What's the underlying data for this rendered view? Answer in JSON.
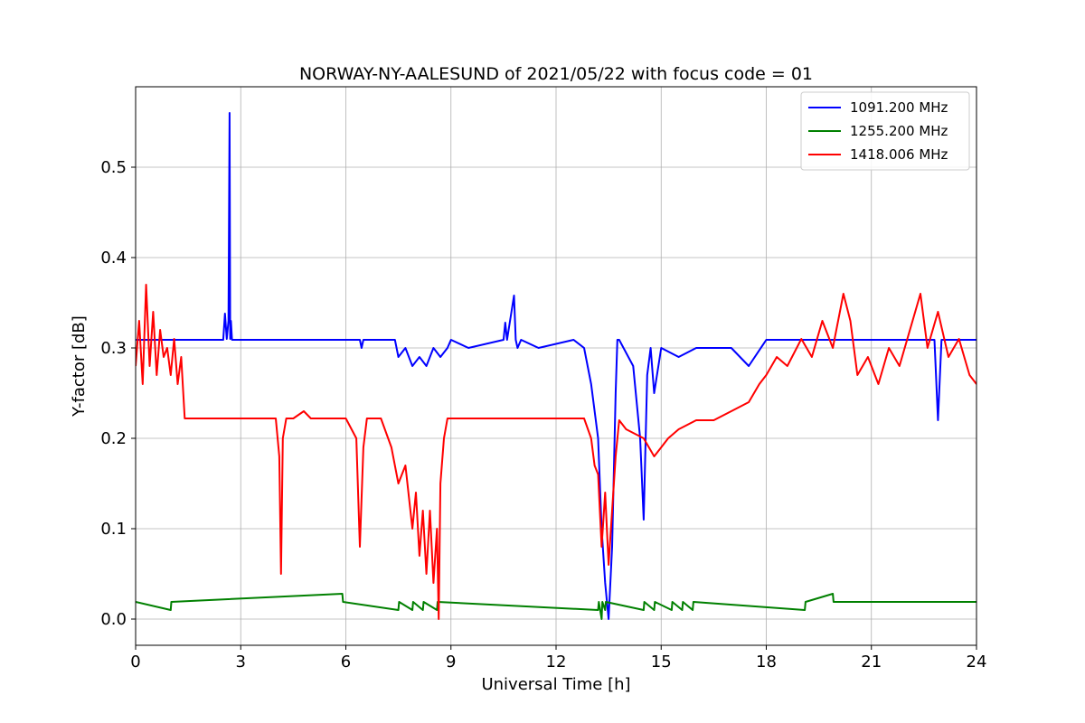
{
  "chart_data": {
    "type": "line",
    "title": "NORWAY-NY-AALESUND of 2021/05/22 with focus code = 01",
    "xlabel": "Universal Time [h]",
    "ylabel": "Y-factor [dB]",
    "xlim": [
      0,
      24
    ],
    "ylim": [
      -0.029,
      0.589
    ],
    "xticks": [
      0,
      3,
      6,
      9,
      12,
      15,
      18,
      21,
      24
    ],
    "xtick_labels": [
      "0",
      "3",
      "6",
      "9",
      "12",
      "15",
      "18",
      "21",
      "24"
    ],
    "yticks": [
      0.0,
      0.1,
      0.2,
      0.3,
      0.4,
      0.5
    ],
    "ytick_labels": [
      "0.0",
      "0.1",
      "0.2",
      "0.3",
      "0.4",
      "0.5"
    ],
    "grid": true,
    "legend_position": "top-right",
    "series": [
      {
        "name": "1091.200 MHz",
        "color": "#0000ff",
        "x": [
          0,
          2.5,
          2.55,
          2.6,
          2.65,
          2.68,
          2.7,
          2.72,
          2.75,
          2.8,
          6.4,
          6.45,
          6.5,
          7.4,
          7.5,
          7.7,
          7.9,
          8.1,
          8.3,
          8.5,
          8.7,
          8.9,
          9.0,
          9.5,
          10.5,
          10.55,
          10.6,
          10.8,
          10.85,
          10.9,
          11.0,
          11.5,
          12.5,
          12.8,
          13.0,
          13.2,
          13.3,
          13.4,
          13.5,
          13.6,
          13.7,
          13.75,
          13.8,
          14.2,
          14.4,
          14.5,
          14.6,
          14.7,
          14.8,
          15.0,
          15.5,
          16.0,
          17.0,
          17.5,
          18.0,
          22.8,
          22.9,
          23.0,
          23.1,
          24.0
        ],
        "y": [
          0.309,
          0.309,
          0.338,
          0.31,
          0.33,
          0.56,
          0.31,
          0.33,
          0.309,
          0.309,
          0.309,
          0.3,
          0.309,
          0.309,
          0.29,
          0.3,
          0.28,
          0.29,
          0.28,
          0.3,
          0.29,
          0.3,
          0.309,
          0.3,
          0.309,
          0.328,
          0.309,
          0.358,
          0.309,
          0.3,
          0.309,
          0.3,
          0.309,
          0.3,
          0.26,
          0.2,
          0.1,
          0.04,
          0.0,
          0.08,
          0.25,
          0.309,
          0.309,
          0.28,
          0.2,
          0.11,
          0.27,
          0.3,
          0.25,
          0.3,
          0.29,
          0.3,
          0.3,
          0.28,
          0.309,
          0.309,
          0.22,
          0.309,
          0.309,
          0.309
        ]
      },
      {
        "name": "1255.200 MHz",
        "color": "#008000",
        "x": [
          0,
          1.0,
          1.02,
          5.9,
          5.92,
          7.5,
          7.52,
          7.9,
          7.92,
          8.2,
          8.22,
          8.6,
          8.62,
          13.2,
          13.22,
          13.3,
          13.32,
          13.4,
          13.42,
          14.5,
          14.52,
          14.8,
          14.82,
          15.3,
          15.32,
          15.6,
          15.62,
          15.9,
          15.92,
          19.1,
          19.12,
          19.9,
          19.92,
          24.0
        ],
        "y": [
          0.019,
          0.01,
          0.019,
          0.028,
          0.019,
          0.01,
          0.019,
          0.01,
          0.019,
          0.01,
          0.019,
          0.01,
          0.019,
          0.01,
          0.019,
          0.0,
          0.019,
          0.01,
          0.019,
          0.01,
          0.019,
          0.01,
          0.019,
          0.01,
          0.019,
          0.01,
          0.019,
          0.01,
          0.019,
          0.01,
          0.019,
          0.028,
          0.019,
          0.019
        ]
      },
      {
        "name": "1418.006 MHz",
        "color": "#ff0000",
        "x": [
          0,
          0.1,
          0.2,
          0.3,
          0.4,
          0.5,
          0.6,
          0.7,
          0.8,
          0.9,
          1.0,
          1.1,
          1.2,
          1.3,
          1.4,
          2.0,
          3.0,
          3.5,
          4.0,
          4.1,
          4.15,
          4.2,
          4.3,
          4.5,
          4.8,
          5.0,
          5.5,
          6.0,
          6.3,
          6.4,
          6.5,
          6.6,
          7.0,
          7.3,
          7.5,
          7.7,
          7.9,
          8.0,
          8.1,
          8.2,
          8.3,
          8.4,
          8.5,
          8.6,
          8.65,
          8.7,
          8.8,
          8.9,
          9.0,
          10.0,
          11.0,
          12.0,
          12.8,
          13.0,
          13.1,
          13.2,
          13.3,
          13.4,
          13.5,
          13.6,
          13.7,
          13.8,
          14.0,
          14.5,
          14.8,
          15.0,
          15.2,
          15.5,
          16.0,
          16.5,
          17.0,
          17.5,
          17.8,
          18.0,
          18.3,
          18.6,
          19.0,
          19.3,
          19.6,
          19.9,
          20.2,
          20.4,
          20.6,
          20.9,
          21.2,
          21.5,
          21.8,
          22.1,
          22.4,
          22.6,
          22.9,
          23.2,
          23.5,
          23.8,
          24.0
        ],
        "y": [
          0.28,
          0.33,
          0.26,
          0.37,
          0.28,
          0.34,
          0.27,
          0.32,
          0.29,
          0.3,
          0.27,
          0.31,
          0.26,
          0.29,
          0.222,
          0.222,
          0.222,
          0.222,
          0.222,
          0.18,
          0.05,
          0.2,
          0.222,
          0.222,
          0.23,
          0.222,
          0.222,
          0.222,
          0.2,
          0.08,
          0.19,
          0.222,
          0.222,
          0.19,
          0.15,
          0.17,
          0.1,
          0.14,
          0.07,
          0.12,
          0.05,
          0.12,
          0.04,
          0.1,
          0.0,
          0.15,
          0.2,
          0.222,
          0.222,
          0.222,
          0.222,
          0.222,
          0.222,
          0.2,
          0.17,
          0.16,
          0.08,
          0.14,
          0.06,
          0.12,
          0.18,
          0.22,
          0.21,
          0.2,
          0.18,
          0.19,
          0.2,
          0.21,
          0.22,
          0.22,
          0.23,
          0.24,
          0.26,
          0.27,
          0.29,
          0.28,
          0.31,
          0.29,
          0.33,
          0.3,
          0.36,
          0.33,
          0.27,
          0.29,
          0.26,
          0.3,
          0.28,
          0.32,
          0.36,
          0.3,
          0.34,
          0.29,
          0.31,
          0.27,
          0.26
        ]
      }
    ]
  }
}
